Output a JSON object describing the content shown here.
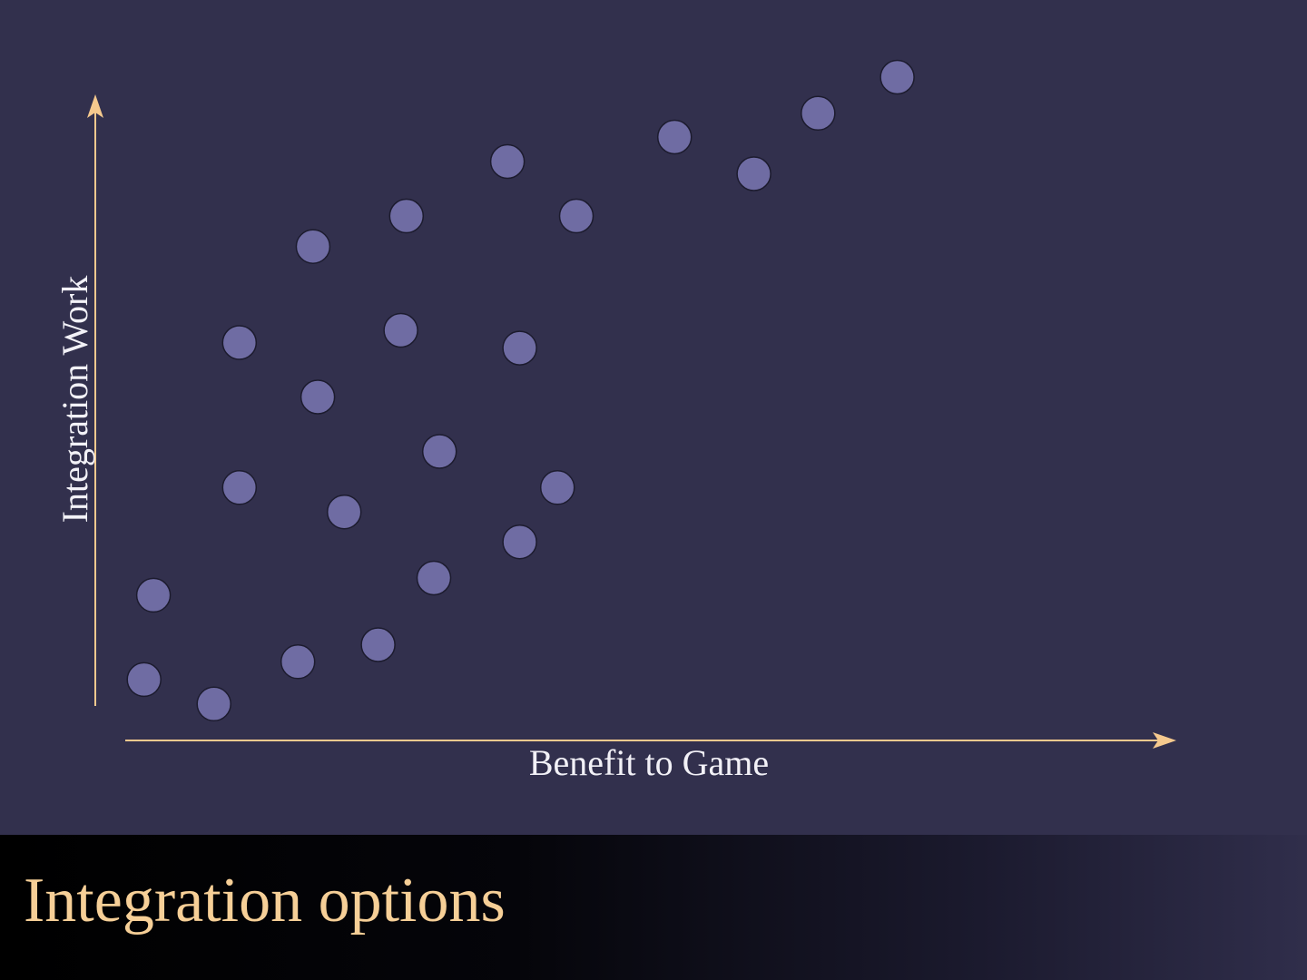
{
  "slide": {
    "title": "Integration options"
  },
  "colors": {
    "background": "#32304d",
    "axis": "#f5c98e",
    "point_fill": "#6f6ca3",
    "point_stroke": "#1c1b2e",
    "axis_label": "#f2f1f7",
    "title": "#f6cf97"
  },
  "chart_data": {
    "type": "scatter",
    "title": "",
    "xlabel": "Benefit to Game",
    "ylabel": "Integration Work",
    "xlim": [
      0,
      100
    ],
    "ylim": [
      0,
      100
    ],
    "grid": false,
    "legend": "none",
    "series": [
      {
        "points": [
          {
            "x": 1.8,
            "y": 6.1
          },
          {
            "x": 2.8,
            "y": 19.9
          },
          {
            "x": 9.2,
            "y": 2.1
          },
          {
            "x": 11.9,
            "y": 37.5
          },
          {
            "x": 11.9,
            "y": 61.2
          },
          {
            "x": 18.1,
            "y": 9.0
          },
          {
            "x": 19.7,
            "y": 76.9
          },
          {
            "x": 20.2,
            "y": 52.3
          },
          {
            "x": 23.0,
            "y": 33.5
          },
          {
            "x": 26.6,
            "y": 11.8
          },
          {
            "x": 29.0,
            "y": 63.2
          },
          {
            "x": 29.6,
            "y": 81.9
          },
          {
            "x": 32.5,
            "y": 22.7
          },
          {
            "x": 33.1,
            "y": 43.4
          },
          {
            "x": 40.3,
            "y": 90.8
          },
          {
            "x": 41.6,
            "y": 28.6
          },
          {
            "x": 41.6,
            "y": 60.3
          },
          {
            "x": 45.6,
            "y": 37.5
          },
          {
            "x": 47.6,
            "y": 81.9
          },
          {
            "x": 58.0,
            "y": 94.8
          },
          {
            "x": 66.4,
            "y": 88.8
          },
          {
            "x": 73.2,
            "y": 98.7
          },
          {
            "x": 81.6,
            "y": 104.6
          }
        ]
      }
    ]
  }
}
